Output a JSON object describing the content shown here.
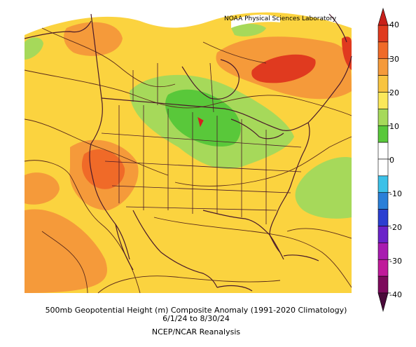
{
  "credit": "NOAA Physical Sciences Laboratory",
  "caption": {
    "line1": "500mb Geopotential Height (m) Composite Anomaly (1991-2020 Climatology)",
    "line2": "6/1/24  to 8/30/24",
    "line3": "NCEP/NCAR Reanalysis"
  },
  "colorbar": {
    "ticks": [
      "40",
      "30",
      "20",
      "10",
      "0",
      "-10",
      "-20",
      "-30",
      "-40"
    ],
    "colors": [
      "#e03a1f",
      "#f06a28",
      "#f59a3a",
      "#f8c440",
      "#fbe85a",
      "#a6d95a",
      "#59c83a",
      "#ffffff",
      "#ffffff",
      "#3cc1e8",
      "#2a7fd8",
      "#2b3fd1",
      "#6a23c9",
      "#a81bb0",
      "#c01a9a",
      "#7d0a5c"
    ]
  },
  "colors": {
    "background_field": "#fbd33f",
    "warm_orange": "#f59a3a",
    "hot_red": "#e03a1f",
    "neutral_white": "#ffffff",
    "green_light": "#a6d95a",
    "green_dark": "#59c83a",
    "coast_border": "#4a1a2a",
    "contour": "#5a2a1a"
  }
}
